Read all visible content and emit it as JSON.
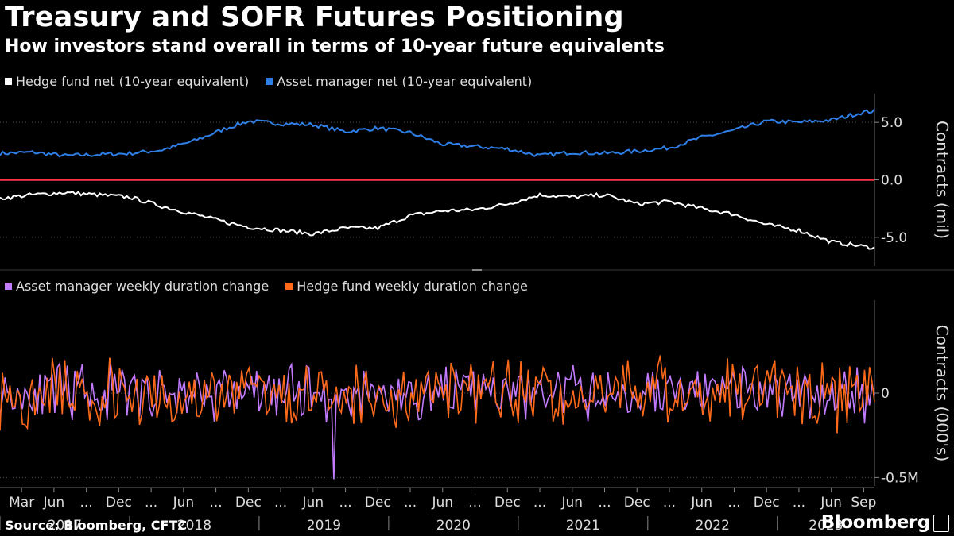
{
  "title": "Treasury and SOFR Futures Positioning",
  "subtitle": "How investors stand overall in terms of 10-year future equivalents",
  "source": "Source: Bloomberg, CFTC",
  "brand": "Bloomberg",
  "colors": {
    "background": "#000000",
    "hedge_net": "#ffffff",
    "asset_net": "#2f7fe8",
    "zero_line": "#ff3344",
    "asset_change": "#c27bff",
    "hedge_change": "#ff6a1a",
    "grid": "#4a4a4a"
  },
  "chart_data": [
    {
      "type": "line",
      "ylabel": "Contracts (mil)",
      "ylim": [
        -7.5,
        7.5
      ],
      "yticks": [
        5.0,
        0.0,
        -5.0
      ],
      "ytick_labels": [
        "5.0",
        "0.0",
        "-5.0"
      ],
      "legend": [
        "Hedge fund net (10-year equivalent)",
        "Asset manager net (10-year equivalent)"
      ],
      "legend_placement": "top-left",
      "grid": true,
      "xlim": [
        "2017-01",
        "2023-10"
      ],
      "series": [
        {
          "name": "Asset manager net (10-year equivalent)",
          "x": [
            "2017-01",
            "2017-04",
            "2017-07",
            "2017-10",
            "2018-01",
            "2018-04",
            "2018-07",
            "2018-10",
            "2018-12",
            "2019-03",
            "2019-06",
            "2019-09",
            "2019-12",
            "2020-03",
            "2020-06",
            "2020-09",
            "2020-12",
            "2021-03",
            "2021-06",
            "2021-09",
            "2021-12",
            "2022-03",
            "2022-06",
            "2022-09",
            "2022-12",
            "2023-03",
            "2023-06",
            "2023-09",
            "2023-10"
          ],
          "values": [
            2.3,
            2.4,
            2.1,
            2.2,
            2.3,
            2.6,
            3.4,
            4.5,
            5.1,
            4.9,
            4.8,
            4.2,
            4.5,
            4.1,
            3.1,
            2.9,
            2.7,
            2.1,
            2.4,
            2.3,
            2.5,
            2.8,
            3.7,
            4.3,
            5.1,
            5.0,
            5.2,
            5.9,
            6.0
          ]
        },
        {
          "name": "Hedge fund net (10-year equivalent)",
          "x": [
            "2017-01",
            "2017-04",
            "2017-07",
            "2017-10",
            "2018-01",
            "2018-04",
            "2018-07",
            "2018-10",
            "2018-12",
            "2019-03",
            "2019-06",
            "2019-09",
            "2019-12",
            "2020-03",
            "2020-06",
            "2020-09",
            "2020-12",
            "2021-03",
            "2021-06",
            "2021-09",
            "2021-12",
            "2022-03",
            "2022-06",
            "2022-09",
            "2022-12",
            "2023-03",
            "2023-06",
            "2023-09",
            "2023-10"
          ],
          "values": [
            -1.6,
            -1.3,
            -1.1,
            -1.3,
            -1.5,
            -2.3,
            -3.0,
            -3.7,
            -4.1,
            -4.4,
            -4.7,
            -4.2,
            -4.2,
            -3.1,
            -2.7,
            -2.6,
            -2.1,
            -1.3,
            -1.5,
            -1.3,
            -2.1,
            -1.9,
            -2.5,
            -3.0,
            -3.9,
            -4.4,
            -5.4,
            -5.8,
            -5.9
          ]
        }
      ]
    },
    {
      "type": "line",
      "ylabel": "Contracts (000's)",
      "ylim": [
        -0.55,
        0.55
      ],
      "yticks": [
        0,
        -0.5
      ],
      "ytick_labels": [
        "0",
        "-0.5M"
      ],
      "legend": [
        "Asset manager weekly duration change",
        "Hedge fund weekly duration change"
      ],
      "legend_placement": "top-left",
      "grid": true,
      "xlim": [
        "2017-01",
        "2023-10"
      ],
      "series": [
        {
          "name": "Asset manager weekly duration change",
          "frequency": "weekly",
          "typical_range": [
            -0.2,
            0.2
          ],
          "extremes": {
            "max": 0.28,
            "min": -0.51,
            "min_date": "2019-08"
          }
        },
        {
          "name": "Hedge fund weekly duration change",
          "frequency": "weekly",
          "typical_range": [
            -0.25,
            0.25
          ],
          "extremes": {
            "max": 0.31,
            "min": -0.35
          }
        }
      ]
    }
  ],
  "x_axis": {
    "tick_labels": [
      "Mar",
      "Jun",
      "...",
      "Dec",
      "...",
      "Jun",
      "...",
      "Dec",
      "...",
      "Jun",
      "...",
      "Dec",
      "...",
      "Jun",
      "...",
      "Dec",
      "...",
      "Jun",
      "...",
      "Dec",
      "...",
      "Jun",
      "...",
      "Dec",
      "...",
      "Jun",
      "Sep"
    ],
    "tick_months": [
      "2017-03",
      "2017-06",
      "2017-09",
      "2017-12",
      "2018-03",
      "2018-06",
      "2018-09",
      "2018-12",
      "2019-03",
      "2019-06",
      "2019-09",
      "2019-12",
      "2020-03",
      "2020-06",
      "2020-09",
      "2020-12",
      "2021-03",
      "2021-06",
      "2021-09",
      "2021-12",
      "2022-03",
      "2022-06",
      "2022-09",
      "2022-12",
      "2023-03",
      "2023-06",
      "2023-09"
    ],
    "years": [
      "2017",
      "2018",
      "2019",
      "2020",
      "2021",
      "2022",
      "2023"
    ]
  }
}
